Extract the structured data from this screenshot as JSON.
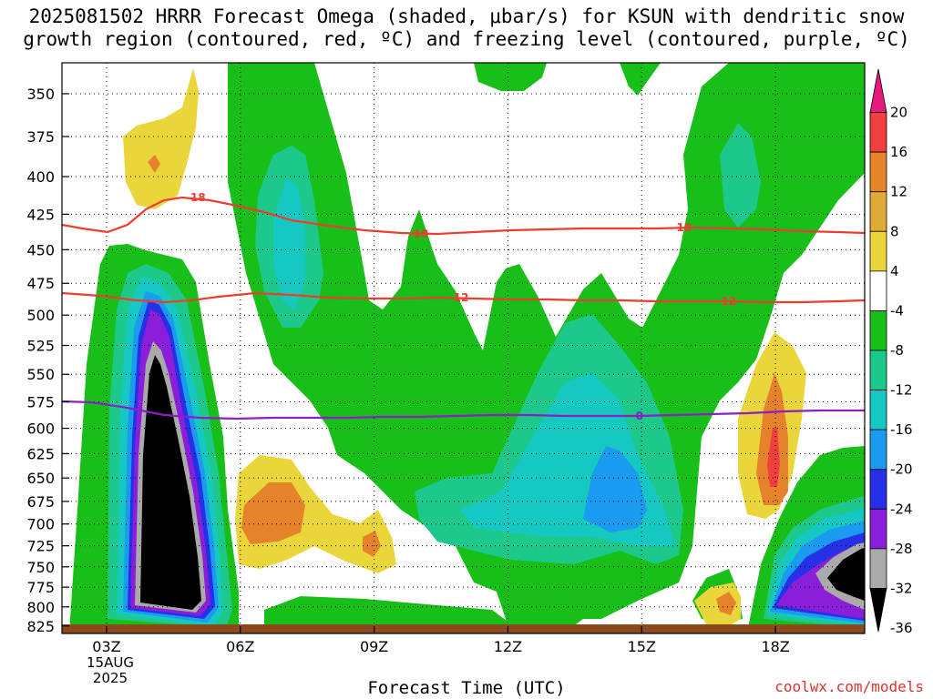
{
  "title": {
    "line1": "2025081502 HRRR Forecast Omega (shaded, μbar/s) for KSUN with dendritic snow",
    "line2": "growth region (contoured, red, ºC) and freezing level (contoured, purple, ºC)"
  },
  "watermark": "coolwx.com/models",
  "chart_data": {
    "type": "contour",
    "title": "2025081502 HRRR Forecast Omega (shaded, μbar/s) for KSUN with dendritic snow growth region (contoured, red, ºC) and freezing level (contoured, purple, ºC)",
    "xlabel": "Forecast Time (UTC)",
    "ylabel": "",
    "x_ticks": [
      "03Z",
      "06Z",
      "09Z",
      "12Z",
      "15Z",
      "18Z"
    ],
    "x_tick_hours": [
      3,
      6,
      9,
      12,
      15,
      18
    ],
    "x_range_hours": [
      2,
      20
    ],
    "date_label": [
      "15AUG",
      "2025"
    ],
    "y_ticks": [
      350,
      375,
      400,
      425,
      450,
      475,
      500,
      525,
      550,
      575,
      600,
      625,
      650,
      675,
      700,
      725,
      750,
      775,
      800,
      825
    ],
    "y_range_mb": [
      333,
      835
    ],
    "y_scale": "log-pressure",
    "grid": true,
    "colorbar": {
      "levels": [
        -36,
        -32,
        -28,
        -24,
        -20,
        -16,
        -12,
        -8,
        -4,
        4,
        8,
        12,
        16,
        20
      ],
      "labels": [
        "20",
        "16",
        "12",
        "8",
        "4",
        "-4",
        "-8",
        "-12",
        "-16",
        "-20",
        "-24",
        "-28",
        "-32",
        "-36"
      ],
      "colors_top_to_bottom": [
        "#e8197e",
        "#ef3f3f",
        "#e5822a",
        "#e0aa38",
        "#ead63a",
        "#ffffff",
        "#18bf18",
        "#1cc88a",
        "#16c8c2",
        "#1a9bef",
        "#2630e6",
        "#8a1ed9",
        "#aaaaaa",
        "#000000"
      ]
    },
    "contours": [
      {
        "name": "-18",
        "color": "#ec3d2f",
        "labels_at_hours": [
          5.0,
          10.0,
          15.9
        ]
      },
      {
        "name": "-12",
        "color": "#ec3d2f",
        "labels_at_hours": [
          10.9,
          16.9
        ]
      },
      {
        "name": "0",
        "color": "#8b1ec5",
        "labels_at_hours": [
          14.95
        ]
      }
    ]
  },
  "colors": {
    "green": "#18bf18",
    "teal": "#1cc88a",
    "cyan": "#16c8c2",
    "blue": "#1a9bef",
    "darkblue": "#2630e6",
    "purple": "#8a1ed9",
    "gray": "#aaaaaa",
    "black": "#000000",
    "yellow": "#ead63a",
    "orange": "#e5822a",
    "gold": "#e0aa38",
    "red": "#ef3f3f",
    "magenta": "#e8197e",
    "ground": "#8b4a1e"
  }
}
